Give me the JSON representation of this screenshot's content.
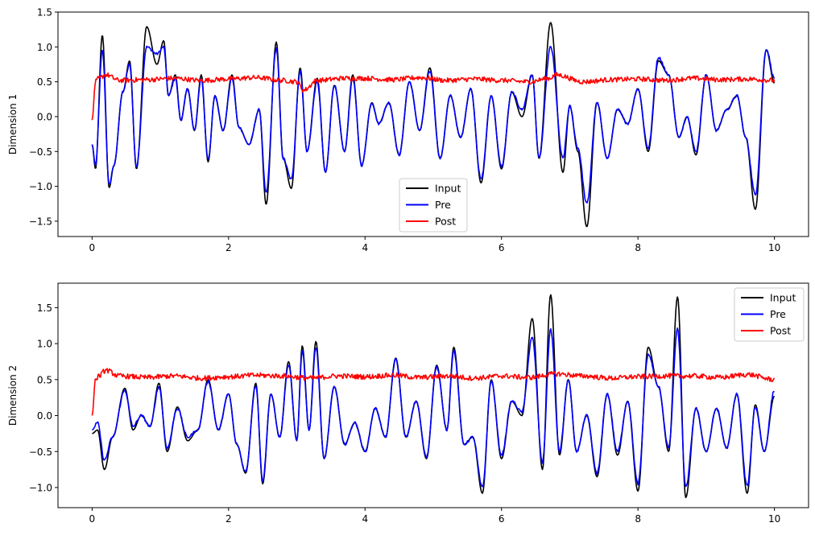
{
  "chart_data": [
    {
      "type": "line",
      "ylabel": "Dimension 1",
      "xlim": [
        -0.5,
        10.5
      ],
      "ylim": [
        -1.72,
        1.5
      ],
      "xticks": [
        0,
        2,
        4,
        6,
        8,
        10
      ],
      "yticks": [
        -1.5,
        -1.0,
        -0.5,
        0.0,
        0.5,
        1.0,
        1.5
      ],
      "ytick_labels": [
        "−1.5",
        "−1.0",
        "−0.5",
        "0.0",
        "0.5",
        "1.0",
        "1.5"
      ],
      "legend_position": "lower-center",
      "series": [
        {
          "name": "Input",
          "color": "#000000",
          "x": [
            0.0,
            0.05,
            0.15,
            0.25,
            0.32,
            0.45,
            0.55,
            0.65,
            0.8,
            0.95,
            1.05,
            1.12,
            1.22,
            1.3,
            1.4,
            1.5,
            1.6,
            1.7,
            1.8,
            1.92,
            2.05,
            2.15,
            2.3,
            2.45,
            2.55,
            2.7,
            2.8,
            2.92,
            3.05,
            3.15,
            3.3,
            3.42,
            3.55,
            3.7,
            3.82,
            3.95,
            4.1,
            4.2,
            4.35,
            4.5,
            4.65,
            4.8,
            4.95,
            5.1,
            5.25,
            5.4,
            5.55,
            5.7,
            5.85,
            6.0,
            6.15,
            6.3,
            6.45,
            6.55,
            6.72,
            6.9,
            7.0,
            7.12,
            7.25,
            7.4,
            7.55,
            7.7,
            7.85,
            8.0,
            8.15,
            8.3,
            8.45,
            8.6,
            8.72,
            8.85,
            9.0,
            9.15,
            9.3,
            9.45,
            9.58,
            9.72,
            9.88,
            10.0
          ],
          "y": [
            -0.4,
            -0.75,
            1.17,
            -1.02,
            -0.7,
            0.35,
            0.8,
            -0.75,
            1.29,
            0.75,
            1.09,
            0.3,
            0.6,
            -0.05,
            0.4,
            -0.2,
            0.6,
            -0.65,
            0.3,
            -0.2,
            0.6,
            -0.15,
            -0.4,
            0.1,
            -1.26,
            1.07,
            -0.6,
            -1.03,
            0.7,
            -0.5,
            0.55,
            -0.8,
            0.45,
            -0.5,
            0.6,
            -0.7,
            0.2,
            -0.1,
            0.2,
            -0.55,
            0.5,
            -0.2,
            0.7,
            -0.6,
            0.3,
            -0.3,
            0.4,
            -0.95,
            0.3,
            -0.75,
            0.35,
            0.0,
            0.6,
            -0.6,
            1.35,
            -0.8,
            0.15,
            -0.5,
            -1.58,
            0.2,
            -0.6,
            0.1,
            -0.1,
            0.4,
            -0.5,
            0.8,
            0.6,
            -0.3,
            0.0,
            -0.55,
            0.6,
            -0.2,
            0.1,
            0.3,
            -0.3,
            -1.33,
            0.96,
            0.48
          ]
        },
        {
          "name": "Pre",
          "color": "#0000ff",
          "x": [
            0.0,
            0.05,
            0.15,
            0.25,
            0.32,
            0.45,
            0.55,
            0.65,
            0.8,
            0.95,
            1.05,
            1.12,
            1.22,
            1.3,
            1.4,
            1.5,
            1.6,
            1.7,
            1.8,
            1.92,
            2.05,
            2.15,
            2.3,
            2.45,
            2.55,
            2.7,
            2.8,
            2.92,
            3.05,
            3.15,
            3.3,
            3.42,
            3.55,
            3.7,
            3.82,
            3.95,
            4.1,
            4.2,
            4.35,
            4.5,
            4.65,
            4.8,
            4.95,
            5.1,
            5.25,
            5.4,
            5.55,
            5.7,
            5.85,
            6.0,
            6.15,
            6.3,
            6.45,
            6.55,
            6.72,
            6.9,
            7.0,
            7.12,
            7.25,
            7.4,
            7.55,
            7.7,
            7.85,
            8.0,
            8.15,
            8.3,
            8.45,
            8.6,
            8.72,
            8.85,
            9.0,
            9.15,
            9.3,
            9.45,
            9.58,
            9.72,
            9.88,
            10.0
          ],
          "y": [
            -0.4,
            -0.7,
            0.95,
            -0.98,
            -0.7,
            0.35,
            0.75,
            -0.72,
            1.0,
            0.9,
            1.0,
            0.3,
            0.55,
            -0.05,
            0.4,
            -0.2,
            0.55,
            -0.62,
            0.3,
            -0.2,
            0.55,
            -0.15,
            -0.4,
            0.1,
            -1.1,
            0.98,
            -0.6,
            -0.9,
            0.65,
            -0.5,
            0.5,
            -0.8,
            0.45,
            -0.5,
            0.55,
            -0.7,
            0.2,
            -0.1,
            0.2,
            -0.55,
            0.5,
            -0.2,
            0.65,
            -0.6,
            0.3,
            -0.3,
            0.4,
            -0.9,
            0.3,
            -0.72,
            0.35,
            0.1,
            0.6,
            -0.6,
            1.0,
            -0.6,
            0.15,
            -0.45,
            -1.25,
            0.2,
            -0.6,
            0.1,
            -0.1,
            0.4,
            -0.45,
            0.85,
            0.6,
            -0.3,
            0.0,
            -0.5,
            0.6,
            -0.2,
            0.1,
            0.3,
            -0.3,
            -1.12,
            0.97,
            0.55
          ]
        },
        {
          "name": "Post",
          "color": "#ff0000",
          "x": [
            0.0,
            0.05,
            0.1,
            0.2,
            0.4,
            0.8,
            1.2,
            1.6,
            2.0,
            2.4,
            2.8,
            3.0,
            3.1,
            3.3,
            3.7,
            4.0,
            4.4,
            4.8,
            5.2,
            5.6,
            6.0,
            6.4,
            6.7,
            6.8,
            7.2,
            7.6,
            8.0,
            8.4,
            8.8,
            9.2,
            9.6,
            10.0
          ],
          "y": [
            -0.05,
            0.5,
            0.55,
            0.6,
            0.52,
            0.53,
            0.55,
            0.52,
            0.54,
            0.56,
            0.52,
            0.5,
            0.38,
            0.52,
            0.55,
            0.55,
            0.53,
            0.56,
            0.52,
            0.54,
            0.52,
            0.5,
            0.55,
            0.6,
            0.5,
            0.53,
            0.54,
            0.52,
            0.55,
            0.53,
            0.54,
            0.52
          ]
        }
      ]
    },
    {
      "type": "line",
      "ylabel": "Dimension 2",
      "xlim": [
        -0.5,
        10.5
      ],
      "ylim": [
        -1.28,
        1.84
      ],
      "xticks": [
        0,
        2,
        4,
        6,
        8,
        10
      ],
      "yticks": [
        -1.0,
        -0.5,
        0.0,
        0.5,
        1.0,
        1.5
      ],
      "ytick_labels": [
        "−1.0",
        "−0.5",
        "0.0",
        "0.5",
        "1.0",
        "1.5"
      ],
      "legend_position": "upper-right",
      "series": [
        {
          "name": "Input",
          "color": "#000000",
          "x": [
            0.0,
            0.08,
            0.18,
            0.3,
            0.48,
            0.6,
            0.72,
            0.85,
            0.98,
            1.1,
            1.25,
            1.4,
            1.55,
            1.7,
            1.85,
            2.0,
            2.12,
            2.25,
            2.4,
            2.5,
            2.62,
            2.75,
            2.88,
            3.0,
            3.08,
            3.18,
            3.28,
            3.4,
            3.55,
            3.7,
            3.85,
            4.0,
            4.15,
            4.3,
            4.45,
            4.6,
            4.75,
            4.9,
            5.05,
            5.2,
            5.3,
            5.45,
            5.58,
            5.72,
            5.85,
            6.0,
            6.15,
            6.3,
            6.45,
            6.6,
            6.72,
            6.85,
            6.98,
            7.1,
            7.25,
            7.4,
            7.55,
            7.7,
            7.85,
            8.0,
            8.15,
            8.3,
            8.45,
            8.58,
            8.7,
            8.85,
            9.0,
            9.15,
            9.3,
            9.45,
            9.6,
            9.72,
            9.85,
            10.0
          ],
          "y": [
            -0.25,
            -0.2,
            -0.75,
            -0.3,
            0.38,
            -0.2,
            0.0,
            -0.15,
            0.45,
            -0.5,
            0.12,
            -0.35,
            -0.2,
            0.5,
            -0.2,
            0.3,
            -0.4,
            -0.8,
            0.45,
            -0.95,
            0.3,
            -0.3,
            0.75,
            -0.35,
            0.97,
            -0.2,
            1.03,
            -0.6,
            0.4,
            -0.4,
            -0.1,
            -0.5,
            0.1,
            -0.3,
            0.8,
            -0.3,
            0.2,
            -0.6,
            0.7,
            -0.2,
            0.95,
            -0.4,
            -0.3,
            -1.08,
            0.5,
            -0.6,
            0.2,
            0.0,
            1.35,
            -0.75,
            1.68,
            -0.55,
            0.5,
            -0.5,
            0.0,
            -0.85,
            0.3,
            -0.55,
            0.2,
            -1.05,
            0.95,
            0.4,
            -0.5,
            1.65,
            -1.14,
            0.1,
            -0.5,
            0.1,
            -0.45,
            0.3,
            -1.08,
            0.15,
            -0.5,
            0.27
          ]
        },
        {
          "name": "Pre",
          "color": "#0000ff",
          "x": [
            0.0,
            0.08,
            0.18,
            0.3,
            0.48,
            0.6,
            0.72,
            0.85,
            0.98,
            1.1,
            1.25,
            1.4,
            1.55,
            1.7,
            1.85,
            2.0,
            2.12,
            2.25,
            2.4,
            2.5,
            2.62,
            2.75,
            2.88,
            3.0,
            3.08,
            3.18,
            3.28,
            3.4,
            3.55,
            3.7,
            3.85,
            4.0,
            4.15,
            4.3,
            4.45,
            4.6,
            4.75,
            4.9,
            5.05,
            5.2,
            5.3,
            5.45,
            5.58,
            5.72,
            5.85,
            6.0,
            6.15,
            6.3,
            6.45,
            6.6,
            6.72,
            6.85,
            6.98,
            7.1,
            7.25,
            7.4,
            7.55,
            7.7,
            7.85,
            8.0,
            8.15,
            8.3,
            8.45,
            8.58,
            8.7,
            8.85,
            9.0,
            9.15,
            9.3,
            9.45,
            9.6,
            9.72,
            9.85,
            10.0
          ],
          "y": [
            -0.2,
            -0.1,
            -0.62,
            -0.3,
            0.35,
            -0.15,
            0.0,
            -0.15,
            0.4,
            -0.45,
            0.1,
            -0.3,
            -0.2,
            0.48,
            -0.2,
            0.3,
            -0.4,
            -0.78,
            0.42,
            -0.9,
            0.3,
            -0.3,
            0.7,
            -0.35,
            0.9,
            -0.2,
            0.95,
            -0.6,
            0.4,
            -0.4,
            -0.1,
            -0.5,
            0.1,
            -0.3,
            0.78,
            -0.3,
            0.2,
            -0.58,
            0.68,
            -0.2,
            0.9,
            -0.4,
            -0.3,
            -1.0,
            0.48,
            -0.55,
            0.2,
            0.05,
            1.08,
            -0.65,
            1.2,
            -0.5,
            0.5,
            -0.5,
            0.0,
            -0.8,
            0.3,
            -0.5,
            0.2,
            -0.95,
            0.85,
            0.4,
            -0.45,
            1.2,
            -1.0,
            0.1,
            -0.5,
            0.1,
            -0.45,
            0.3,
            -0.98,
            0.12,
            -0.5,
            0.35
          ]
        },
        {
          "name": "Post",
          "color": "#ff0000",
          "x": [
            0.0,
            0.05,
            0.1,
            0.2,
            0.4,
            0.8,
            1.2,
            1.6,
            2.0,
            2.4,
            2.8,
            3.2,
            3.6,
            4.0,
            4.4,
            4.8,
            5.2,
            5.6,
            6.0,
            6.4,
            6.8,
            7.2,
            7.6,
            8.0,
            8.4,
            8.8,
            9.2,
            9.6,
            10.0
          ],
          "y": [
            0.0,
            0.5,
            0.55,
            0.63,
            0.55,
            0.53,
            0.55,
            0.52,
            0.54,
            0.56,
            0.55,
            0.52,
            0.55,
            0.54,
            0.56,
            0.53,
            0.55,
            0.52,
            0.55,
            0.53,
            0.58,
            0.55,
            0.52,
            0.54,
            0.55,
            0.55,
            0.53,
            0.57,
            0.5
          ]
        }
      ]
    }
  ]
}
